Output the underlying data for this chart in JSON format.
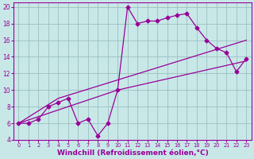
{
  "xlabel": "Windchill (Refroidissement éolien,°C)",
  "bg_color": "#c8e8e8",
  "line_color": "#990099",
  "grid_color": "#9bbfbf",
  "xlim": [
    -0.5,
    23.5
  ],
  "ylim": [
    4,
    20.5
  ],
  "xticks": [
    0,
    1,
    2,
    3,
    4,
    5,
    6,
    7,
    8,
    9,
    10,
    11,
    12,
    13,
    14,
    15,
    16,
    17,
    18,
    19,
    20,
    21,
    22,
    23
  ],
  "yticks": [
    4,
    6,
    8,
    10,
    12,
    14,
    16,
    18,
    20
  ],
  "line1_x": [
    0,
    1,
    2,
    3,
    4,
    5,
    6,
    7,
    8,
    9,
    10,
    11,
    12,
    13,
    14,
    15,
    16,
    17,
    18,
    19,
    20,
    21,
    22,
    23
  ],
  "line1_y": [
    6.0,
    6.0,
    6.5,
    8.0,
    8.5,
    9.0,
    6.0,
    6.5,
    4.5,
    6.0,
    10.0,
    20.0,
    18.0,
    18.3,
    18.3,
    18.7,
    19.0,
    19.2,
    17.5,
    16.0,
    15.0,
    14.5,
    12.2,
    13.8
  ],
  "line2_x": [
    0,
    4,
    23
  ],
  "line2_y": [
    6.0,
    9.0,
    16.0
  ],
  "line3_x": [
    0,
    10,
    23
  ],
  "line3_y": [
    6.0,
    10.0,
    13.5
  ],
  "markersize": 2.5,
  "linewidth": 0.9,
  "xlabel_fontsize": 6.5,
  "tick_fontsize_x": 4.8,
  "tick_fontsize_y": 5.5
}
